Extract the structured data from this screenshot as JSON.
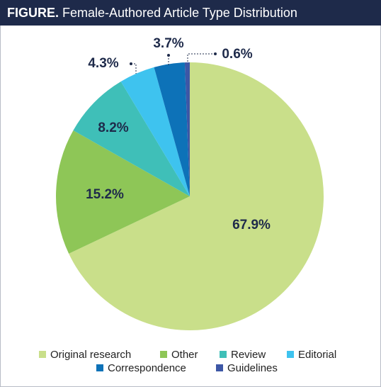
{
  "chart_data": {
    "type": "pie",
    "title_label": "FIGURE.",
    "title": "Female-Authored Article Type Distribution",
    "categories": [
      "Original research",
      "Other",
      "Review",
      "Editorial",
      "Correspondence",
      "Guidelines"
    ],
    "values": [
      67.9,
      15.2,
      8.2,
      4.3,
      3.7,
      0.6
    ],
    "value_labels": [
      "67.9%",
      "15.2%",
      "8.2%",
      "4.3%",
      "3.7%",
      "0.6%"
    ],
    "colors": [
      "#c9df8a",
      "#8ec657",
      "#3fbfb8",
      "#3ec3ef",
      "#0d72b8",
      "#3d57a6"
    ]
  }
}
